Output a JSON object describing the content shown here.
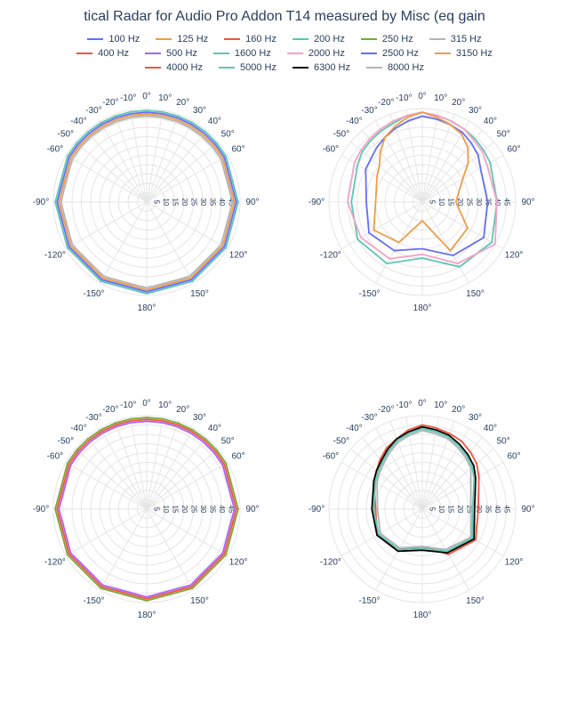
{
  "title": "tical Radar for Audio Pro Addon T14 measured by Misc (eq gain ",
  "title_color": "#2a3f5f",
  "background": "#ffffff",
  "grid_color": "#e5e5e5",
  "axis_color": "#2a3f5f",
  "tick_font_size": 10,
  "angle_labels": [
    "0°",
    "10°",
    "20°",
    "30°",
    "40°",
    "50°",
    "60°",
    "90°",
    "120°",
    "150°",
    "180°",
    "-150°",
    "-120°",
    "-90°",
    "-60°",
    "-50°",
    "-40°",
    "-30°",
    "-20°",
    "-10°"
  ],
  "angle_values": [
    0,
    10,
    20,
    30,
    40,
    50,
    60,
    90,
    120,
    150,
    180,
    210,
    240,
    270,
    300,
    310,
    320,
    330,
    340,
    350
  ],
  "radial_ticks": [
    5,
    10,
    15,
    20,
    25,
    30,
    35,
    40,
    45
  ],
  "radial_max": 50,
  "legend": [
    {
      "label": "100 Hz",
      "color": "#636efa"
    },
    {
      "label": "125 Hz",
      "color": "#ef9b47"
    },
    {
      "label": "160 Hz",
      "color": "#ef553b"
    },
    {
      "label": "200 Hz",
      "color": "#5ec6b2"
    },
    {
      "label": "250 Hz",
      "color": "#7ca63a"
    },
    {
      "label": "315 Hz",
      "color": "#b3b3b3"
    },
    {
      "label": "400 Hz",
      "color": "#ef553b"
    },
    {
      "label": "500 Hz",
      "color": "#ab63fa"
    },
    {
      "label": "1600 Hz",
      "color": "#5ec6b2"
    },
    {
      "label": "2000 Hz",
      "color": "#f5a3c7"
    },
    {
      "label": "2500 Hz",
      "color": "#636efa"
    },
    {
      "label": "3150 Hz",
      "color": "#ef9b47"
    },
    {
      "label": "4000 Hz",
      "color": "#ef553b"
    },
    {
      "label": "5000 Hz",
      "color": "#5ec6b2"
    },
    {
      "label": "6300 Hz",
      "color": "#000000"
    },
    {
      "label": "8000 Hz",
      "color": "#b3b3b3"
    }
  ],
  "plots": [
    {
      "series": [
        {
          "color": "#636efa",
          "r": [
            48,
            48,
            48,
            48,
            48,
            48,
            48,
            48,
            48,
            48,
            48,
            48,
            48,
            48,
            48,
            48,
            48,
            48,
            48,
            48
          ]
        },
        {
          "color": "#ef9b47",
          "r": [
            47,
            47,
            47,
            47,
            47,
            47,
            47,
            47,
            47,
            47,
            47,
            47,
            47,
            47,
            47,
            47,
            47,
            47,
            47,
            47
          ]
        },
        {
          "color": "#5ec6b2",
          "r": [
            49,
            49,
            49,
            49,
            49,
            49,
            49,
            49,
            49,
            49,
            49,
            49,
            49,
            49,
            49,
            49,
            49,
            49,
            49,
            49
          ]
        },
        {
          "color": "#b3b3b3",
          "r": [
            46,
            46,
            46,
            46,
            46,
            46,
            46,
            46,
            46,
            46,
            46,
            46,
            46,
            46,
            46,
            46,
            46,
            46,
            46,
            46
          ]
        }
      ]
    },
    {
      "series": [
        {
          "color": "#5ec6b2",
          "r": [
            48,
            47,
            46,
            45,
            44,
            43,
            42,
            40,
            43,
            40,
            30,
            38,
            40,
            38,
            40,
            42,
            43,
            44,
            45,
            47
          ]
        },
        {
          "color": "#f5a3c7",
          "r": [
            48,
            47,
            46,
            45,
            43,
            42,
            40,
            40,
            45,
            38,
            28,
            35,
            38,
            40,
            42,
            43,
            44,
            45,
            46,
            47
          ]
        },
        {
          "color": "#636efa",
          "r": [
            46,
            45,
            44,
            43,
            41,
            39,
            36,
            35,
            38,
            33,
            25,
            30,
            33,
            30,
            35,
            36,
            38,
            40,
            42,
            44
          ]
        },
        {
          "color": "#ef9b47",
          "r": [
            48,
            46,
            44,
            42,
            38,
            32,
            25,
            18,
            28,
            30,
            10,
            25,
            30,
            25,
            28,
            30,
            35,
            40,
            43,
            46
          ]
        }
      ]
    },
    {
      "series": [
        {
          "color": "#ef553b",
          "r": [
            48,
            48,
            48,
            48,
            48,
            48,
            48,
            48,
            48,
            48,
            48,
            48,
            48,
            48,
            48,
            48,
            48,
            48,
            48,
            48
          ]
        },
        {
          "color": "#ab63fa",
          "r": [
            47,
            47,
            47,
            47,
            47,
            47,
            47,
            47,
            47,
            47,
            47,
            47,
            47,
            47,
            47,
            47,
            47,
            47,
            47,
            47
          ]
        },
        {
          "color": "#7ca63a",
          "r": [
            49,
            49,
            49,
            49,
            49,
            49,
            49,
            49,
            49,
            49,
            49,
            49,
            49,
            49,
            49,
            49,
            49,
            49,
            49,
            49
          ]
        }
      ]
    },
    {
      "series": [
        {
          "color": "#ef553b",
          "r": [
            45,
            44,
            43,
            42,
            40,
            38,
            35,
            30,
            33,
            28,
            20,
            25,
            28,
            25,
            30,
            32,
            35,
            38,
            40,
            43
          ]
        },
        {
          "color": "#000000",
          "r": [
            44,
            43,
            42,
            40,
            38,
            36,
            33,
            28,
            32,
            27,
            22,
            26,
            28,
            27,
            30,
            32,
            34,
            37,
            40,
            42
          ]
        },
        {
          "color": "#b3b3b3",
          "r": [
            42,
            41,
            40,
            38,
            36,
            34,
            30,
            26,
            30,
            25,
            20,
            24,
            26,
            24,
            28,
            30,
            32,
            35,
            38,
            40
          ]
        },
        {
          "color": "#5ec6b2",
          "r": [
            43,
            42,
            41,
            39,
            37,
            35,
            32,
            27,
            31,
            26,
            21,
            25,
            27,
            26,
            29,
            31,
            33,
            36,
            39,
            41
          ]
        }
      ]
    }
  ]
}
